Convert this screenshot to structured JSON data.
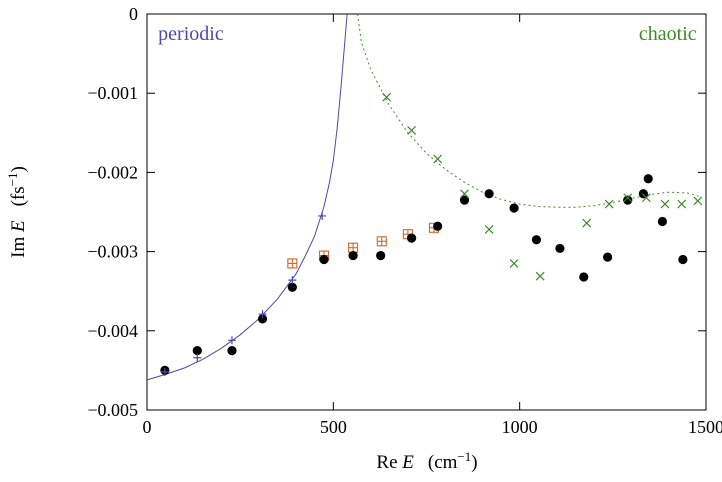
{
  "chart_data": {
    "type": "scatter",
    "xlabel_main": "Re ",
    "xlabel_var": "E",
    "xlabel_unit": "(cm",
    "xlabel_exp": "−1",
    "xlabel_close": ")",
    "ylabel_main": "Im ",
    "ylabel_var": "E",
    "ylabel_unit": "(fs",
    "ylabel_exp": "−1",
    "ylabel_close": ")",
    "xlim": [
      0,
      1500
    ],
    "ylim": [
      -0.005,
      0
    ],
    "xticks": [
      0,
      500,
      1000,
      1500
    ],
    "xtick_labels": [
      "0",
      "500",
      "1000",
      "1500"
    ],
    "yticks": [
      0,
      -0.001,
      -0.002,
      -0.003,
      -0.004,
      -0.005
    ],
    "ytick_labels": [
      "0",
      "−0.001",
      "−0.002",
      "−0.003",
      "−0.004",
      "−0.005"
    ],
    "grid": false,
    "annotations": [
      {
        "text": "periodic",
        "color": "#4b4bab",
        "x": 30,
        "y": -0.00033,
        "anchor": "start"
      },
      {
        "text": "chaotic",
        "color": "#3f8a2a",
        "x": 1475,
        "y": -0.00033,
        "anchor": "end"
      }
    ],
    "series": [
      {
        "marker": "circle",
        "color": "#000000",
        "points": [
          [
            48,
            -0.0045
          ],
          [
            135,
            -0.00425
          ],
          [
            228,
            -0.00425
          ],
          [
            310,
            -0.00385
          ],
          [
            390,
            -0.00345
          ],
          [
            475,
            -0.0031
          ],
          [
            553,
            -0.00305
          ],
          [
            627,
            -0.00305
          ],
          [
            710,
            -0.00283
          ],
          [
            780,
            -0.00268
          ],
          [
            852,
            -0.00235
          ],
          [
            918,
            -0.00227
          ],
          [
            985,
            -0.00245
          ],
          [
            1045,
            -0.00285
          ],
          [
            1108,
            -0.00296
          ],
          [
            1172,
            -0.00332
          ],
          [
            1236,
            -0.00307
          ],
          [
            1290,
            -0.00235
          ],
          [
            1332,
            -0.00227
          ],
          [
            1345,
            -0.00208
          ],
          [
            1383,
            -0.00262
          ],
          [
            1438,
            -0.0031
          ]
        ]
      },
      {
        "marker": "plus",
        "color": "#4b4bab",
        "points": [
          [
            48,
            -0.00452
          ],
          [
            135,
            -0.00434
          ],
          [
            228,
            -0.00412
          ],
          [
            310,
            -0.00379
          ],
          [
            390,
            -0.00336
          ],
          [
            470,
            -0.00255
          ]
        ]
      },
      {
        "marker": "boxplus",
        "color": "#d2692b",
        "points": [
          [
            390,
            -0.00315
          ],
          [
            475,
            -0.00305
          ],
          [
            553,
            -0.00295
          ],
          [
            630,
            -0.00287
          ],
          [
            700,
            -0.00278
          ],
          [
            770,
            -0.0027
          ]
        ]
      },
      {
        "marker": "cross",
        "color": "#3f8a2a",
        "points": [
          [
            643,
            -0.00105
          ],
          [
            710,
            -0.00147
          ],
          [
            780,
            -0.00183
          ],
          [
            852,
            -0.00227
          ],
          [
            918,
            -0.00272
          ],
          [
            985,
            -0.00315
          ],
          [
            1055,
            -0.00331
          ],
          [
            1180,
            -0.00264
          ],
          [
            1240,
            -0.0024
          ],
          [
            1290,
            -0.00232
          ],
          [
            1340,
            -0.00232
          ],
          [
            1390,
            -0.0024
          ],
          [
            1435,
            -0.0024
          ],
          [
            1478,
            -0.00236
          ]
        ]
      }
    ],
    "curves": [
      {
        "style": "solid",
        "color": "#4b4bab",
        "points": [
          [
            0,
            -0.00462
          ],
          [
            50,
            -0.00455
          ],
          [
            100,
            -0.00447
          ],
          [
            150,
            -0.00436
          ],
          [
            200,
            -0.00422
          ],
          [
            250,
            -0.00405
          ],
          [
            300,
            -0.00385
          ],
          [
            350,
            -0.0036
          ],
          [
            400,
            -0.00328
          ],
          [
            425,
            -0.00305
          ],
          [
            450,
            -0.0028
          ],
          [
            475,
            -0.00243
          ],
          [
            490,
            -0.00212
          ],
          [
            500,
            -0.00185
          ],
          [
            510,
            -0.00145
          ],
          [
            520,
            -0.00095
          ],
          [
            530,
            -0.0004
          ],
          [
            537,
            0
          ]
        ]
      },
      {
        "style": "dotted",
        "color": "#3f8a2a",
        "points": [
          [
            565,
            0
          ],
          [
            575,
            -0.00035
          ],
          [
            600,
            -0.0007
          ],
          [
            650,
            -0.00115
          ],
          [
            700,
            -0.0015
          ],
          [
            750,
            -0.00176
          ],
          [
            800,
            -0.00196
          ],
          [
            850,
            -0.00212
          ],
          [
            900,
            -0.00225
          ],
          [
            950,
            -0.00234
          ],
          [
            1000,
            -0.0024
          ],
          [
            1050,
            -0.00243
          ],
          [
            1100,
            -0.00244
          ],
          [
            1150,
            -0.00244
          ],
          [
            1200,
            -0.00242
          ],
          [
            1250,
            -0.00238
          ],
          [
            1300,
            -0.00233
          ],
          [
            1350,
            -0.00228
          ],
          [
            1400,
            -0.00225
          ],
          [
            1450,
            -0.00226
          ],
          [
            1480,
            -0.0023
          ]
        ]
      }
    ]
  }
}
